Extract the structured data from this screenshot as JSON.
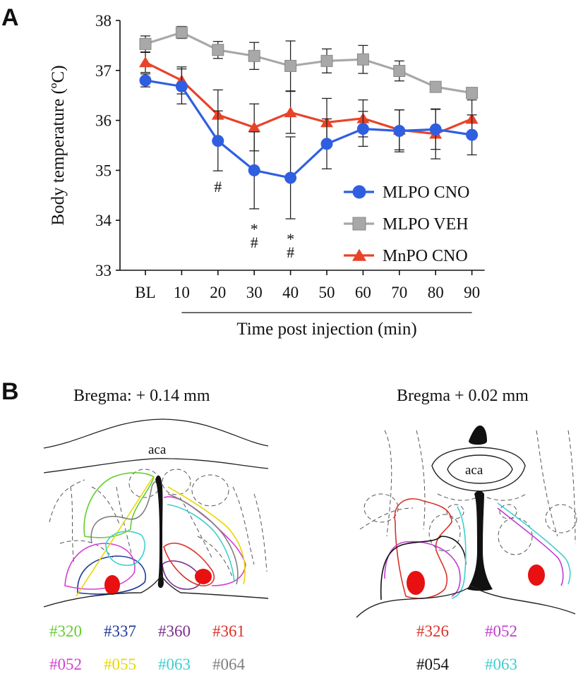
{
  "panel_a": {
    "label": "A"
  },
  "panel_b": {
    "label": "B",
    "left": {
      "title": "Bregma: + 0.14 mm",
      "structure": "aca",
      "mice": [
        {
          "id": "#320",
          "color": "#66cc33"
        },
        {
          "id": "#337",
          "color": "#1f3a99"
        },
        {
          "id": "#360",
          "color": "#7a2d8f"
        },
        {
          "id": "#361",
          "color": "#d9322b"
        },
        {
          "id": "#052",
          "color": "#d63fd0"
        },
        {
          "id": "#055",
          "color": "#e8d800"
        },
        {
          "id": "#063",
          "color": "#3ecfcf"
        },
        {
          "id": "#064",
          "color": "#808080"
        }
      ]
    },
    "right": {
      "title": "Bregma + 0.02 mm",
      "structure": "aca",
      "mice": [
        {
          "id": "#326",
          "color": "#d9322b"
        },
        {
          "id": "#052",
          "color": "#c03cd0"
        },
        {
          "id": "#054",
          "color": "#111111"
        },
        {
          "id": "#063",
          "color": "#3ecfcf"
        }
      ]
    }
  },
  "chart_data": {
    "type": "line",
    "title": "",
    "xlabel": "Time post  injection (min)",
    "ylabel": "Body temperature (ºC)",
    "categories": [
      "BL",
      "10",
      "20",
      "30",
      "40",
      "50",
      "60",
      "70",
      "80",
      "90"
    ],
    "ylim": [
      33,
      38
    ],
    "yticks": [
      "33",
      "34",
      "35",
      "36",
      "37",
      "38"
    ],
    "grid": false,
    "legend_position": "bottom-right",
    "series": [
      {
        "name": "MLPO CNO",
        "color": "#2f5fe0",
        "marker": "circle",
        "values": [
          36.8,
          36.68,
          35.59,
          35.0,
          34.85,
          35.53,
          35.83,
          35.79,
          35.82,
          35.71
        ],
        "errors": [
          0.13,
          0.35,
          0.6,
          0.77,
          0.82,
          0.5,
          0.35,
          0.42,
          0.4,
          0.4
        ]
      },
      {
        "name": "MLPO VEH",
        "color": "#a8a8a8",
        "marker": "square",
        "values": [
          37.53,
          37.76,
          37.41,
          37.29,
          37.09,
          37.19,
          37.22,
          36.99,
          36.67,
          36.55
        ],
        "errors": [
          0.16,
          0.12,
          0.17,
          0.27,
          0.5,
          0.24,
          0.28,
          0.2,
          0.0,
          0.0
        ]
      },
      {
        "name": "MnPO CNO",
        "color": "#e8432a",
        "marker": "triangle",
        "values": [
          37.16,
          36.8,
          36.11,
          35.86,
          36.16,
          35.96,
          36.04,
          35.81,
          35.73,
          36.03
        ],
        "errors": [
          0.2,
          0.27,
          0.5,
          0.47,
          0.42,
          0.48,
          0.37,
          0.4,
          0.5,
          0.38
        ]
      }
    ],
    "annotations": [
      {
        "category": "20",
        "lines": [
          "#"
        ]
      },
      {
        "category": "30",
        "lines": [
          "*",
          "#"
        ]
      },
      {
        "category": "40",
        "lines": [
          "*",
          "#"
        ]
      }
    ]
  }
}
